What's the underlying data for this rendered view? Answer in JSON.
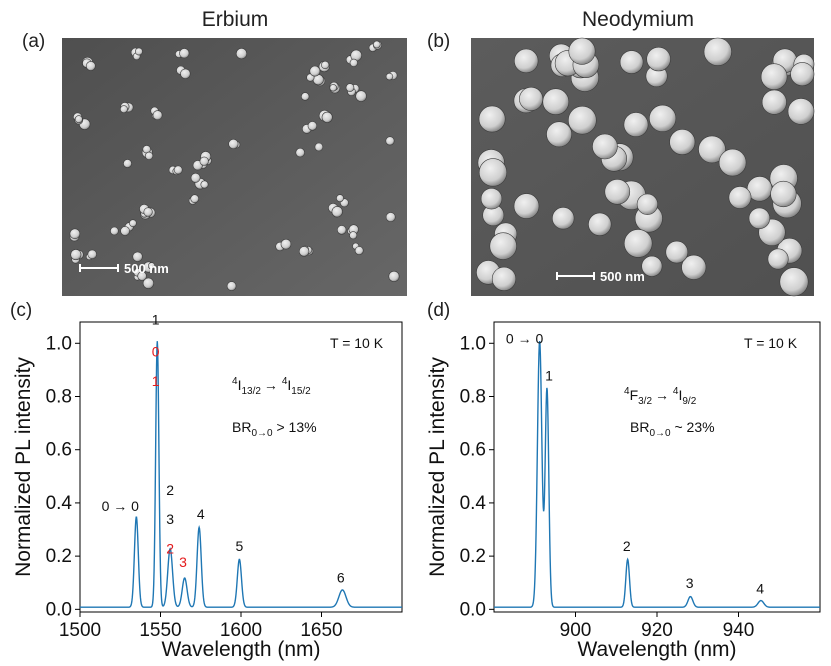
{
  "figure": {
    "titles": {
      "a": "Erbium",
      "b": "Neodymium"
    },
    "panel_labels": {
      "a": "(a)",
      "b": "(b)",
      "c": "(c)",
      "d": "(d)"
    },
    "sem_scale_a": "500 nm",
    "sem_scale_b": "500 nm"
  },
  "colors": {
    "series": "#1f77b4",
    "annotation_red": "#e41a1c",
    "sem_background": "#5a5a5a",
    "particle": "#d4d4d4"
  },
  "chart_data": [
    {
      "type": "line",
      "panel": "(c)",
      "xlabel": "Wavelength (nm)",
      "ylabel": "Normalized PL intensity",
      "xlim": [
        1500,
        1700
      ],
      "ylim": [
        -0.01,
        1.08
      ],
      "xticks": [
        1500,
        1550,
        1600,
        1650
      ],
      "yticks": [
        0.0,
        0.2,
        0.4,
        0.6,
        0.8,
        1.0
      ],
      "xtick_labels": [
        "1500",
        "1550",
        "1600",
        "1650"
      ],
      "ytick_labels": [
        "0.0",
        "0.2",
        "0.4",
        "0.6",
        "0.8",
        "1.0"
      ],
      "series_color": "#1f77b4",
      "peaks": [
        {
          "x": 1535,
          "y": 0.34
        },
        {
          "x": 1548,
          "y": 1.0
        },
        {
          "x": 1556,
          "y": 0.22
        },
        {
          "x": 1565,
          "y": 0.11
        },
        {
          "x": 1574,
          "y": 0.3
        },
        {
          "x": 1599,
          "y": 0.18
        },
        {
          "x": 1663,
          "y": 0.065
        }
      ],
      "temperature": "T = 10 K",
      "transition": {
        "a": "4",
        "b": "I",
        "c": "13/2",
        "d": "→ ",
        "e": "4",
        "f": "I",
        "g": "15/2"
      },
      "branching": {
        "base": "BR",
        "sub": "0→0",
        "rest": "  > 13%"
      },
      "annotations": [
        {
          "x": 1525,
          "y": 0.37,
          "text": "0 → 0",
          "color": "#111111"
        },
        {
          "x": 1547,
          "y": 1.07,
          "text": "1",
          "color": "#111111"
        },
        {
          "x": 1547,
          "y": 0.95,
          "text": "0",
          "color": "#e41a1c"
        },
        {
          "x": 1547,
          "y": 0.84,
          "text": "1",
          "color": "#e41a1c"
        },
        {
          "x": 1556,
          "y": 0.43,
          "text": "2",
          "color": "#111111"
        },
        {
          "x": 1556,
          "y": 0.32,
          "text": "3",
          "color": "#111111"
        },
        {
          "x": 1556,
          "y": 0.21,
          "text": "2",
          "color": "#e41a1c"
        },
        {
          "x": 1564,
          "y": 0.16,
          "text": "3",
          "color": "#e41a1c"
        },
        {
          "x": 1575,
          "y": 0.34,
          "text": "4",
          "color": "#111111"
        },
        {
          "x": 1599,
          "y": 0.22,
          "text": "5",
          "color": "#111111"
        },
        {
          "x": 1662,
          "y": 0.1,
          "text": "6",
          "color": "#111111"
        }
      ]
    },
    {
      "type": "line",
      "panel": "(d)",
      "xlabel": "Wavelength (nm)",
      "ylabel": "Normalized PL intensity",
      "xlim": [
        880,
        960
      ],
      "ylim": [
        -0.01,
        1.08
      ],
      "xticks": [
        900,
        920,
        940
      ],
      "yticks": [
        0.0,
        0.2,
        0.4,
        0.6,
        0.8,
        1.0
      ],
      "xtick_labels": [
        "900",
        "920",
        "940"
      ],
      "ytick_labels": [
        "0.0",
        "0.2",
        "0.4",
        "0.6",
        "0.8",
        "1.0"
      ],
      "series_color": "#1f77b4",
      "peaks": [
        {
          "x": 891.2,
          "y": 1.0
        },
        {
          "x": 893.0,
          "y": 0.82
        },
        {
          "x": 912.8,
          "y": 0.18
        },
        {
          "x": 928.2,
          "y": 0.04
        },
        {
          "x": 945.5,
          "y": 0.025
        }
      ],
      "temperature": "T = 10 K",
      "transition": {
        "a": "4",
        "b": "F",
        "c": "3/2",
        "d": "→ ",
        "e": "4",
        "f": "I",
        "g": "9/2"
      },
      "branching": {
        "base": "BR",
        "sub": "0→0",
        "rest": " ~ 23%"
      },
      "annotations": [
        {
          "x": 887.5,
          "y": 1.0,
          "text": "0 → 0",
          "color": "#111111"
        },
        {
          "x": 893.5,
          "y": 0.86,
          "text": "1",
          "color": "#111111"
        },
        {
          "x": 912.6,
          "y": 0.22,
          "text": "2",
          "color": "#111111"
        },
        {
          "x": 928.0,
          "y": 0.08,
          "text": "3",
          "color": "#111111"
        },
        {
          "x": 945.3,
          "y": 0.06,
          "text": "4",
          "color": "#111111"
        }
      ]
    }
  ]
}
